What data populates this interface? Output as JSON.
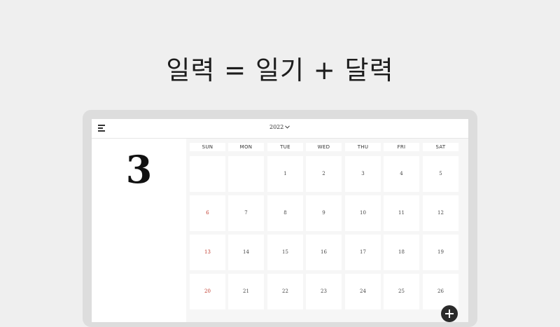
{
  "headline": "일력 = 일기 + 달력",
  "toolbar": {
    "menu_icon": "hamburger-menu-icon",
    "year_label": "2022",
    "year_dropdown_icon": "chevron-down-icon"
  },
  "month_display": "3",
  "weekdays": [
    "SUN",
    "MON",
    "TUE",
    "WED",
    "THU",
    "FRI",
    "SAT"
  ],
  "weeks": [
    [
      "",
      "",
      "1",
      "2",
      "3",
      "4",
      "5"
    ],
    [
      "6",
      "7",
      "8",
      "9",
      "10",
      "11",
      "12"
    ],
    [
      "13",
      "14",
      "15",
      "16",
      "17",
      "18",
      "19"
    ],
    [
      "20",
      "21",
      "22",
      "23",
      "24",
      "25",
      "26"
    ]
  ],
  "colors": {
    "sunday": "#c0392b",
    "fab": "#2b2b2b"
  },
  "fab": {
    "icon": "plus-icon"
  }
}
